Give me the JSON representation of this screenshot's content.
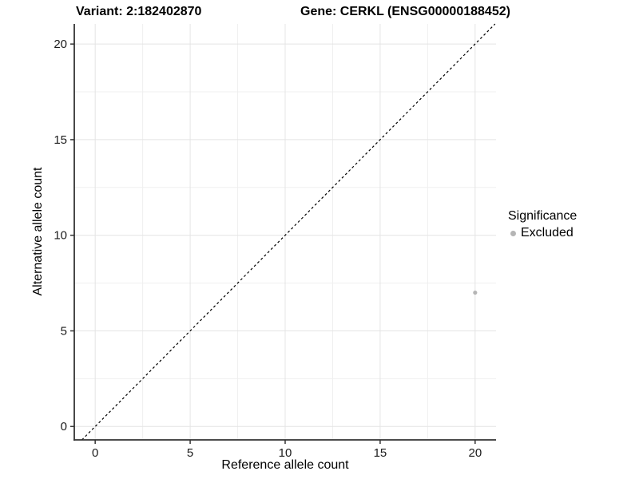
{
  "chart_data": {
    "type": "scatter",
    "title_left": "Variant: 2:182402870",
    "title_right": "Gene: CERKL (ENSG00000188452)",
    "xlabel": "Reference allele count",
    "ylabel": "Alternative allele count",
    "xlim": [
      -1.1,
      21.1
    ],
    "ylim": [
      -0.7,
      21.05
    ],
    "x_ticks": [
      0,
      5,
      10,
      15,
      20
    ],
    "y_ticks": [
      0,
      5,
      10,
      15,
      20
    ],
    "x_minor_ticks": [
      2.5,
      7.5,
      12.5,
      17.5
    ],
    "y_minor_ticks": [
      2.5,
      7.5,
      12.5,
      17.5
    ],
    "grid": "on",
    "identity_line": {
      "slope": 1,
      "intercept": 0,
      "style": "dashed",
      "color": "#000000"
    },
    "series": [
      {
        "name": "Excluded",
        "color": "#b5b5b5",
        "points": [
          {
            "x": 20,
            "y": 7
          }
        ]
      }
    ],
    "legend": {
      "title": "Significance",
      "position": "right",
      "items": [
        {
          "label": "Excluded",
          "color": "#b5b5b5"
        }
      ]
    },
    "colors": {
      "axis_line": "#333333",
      "tick_text": "#1a1a1a",
      "grid_major": "#e4e4e4",
      "grid_minor": "#efefef",
      "background": "#ffffff"
    }
  }
}
